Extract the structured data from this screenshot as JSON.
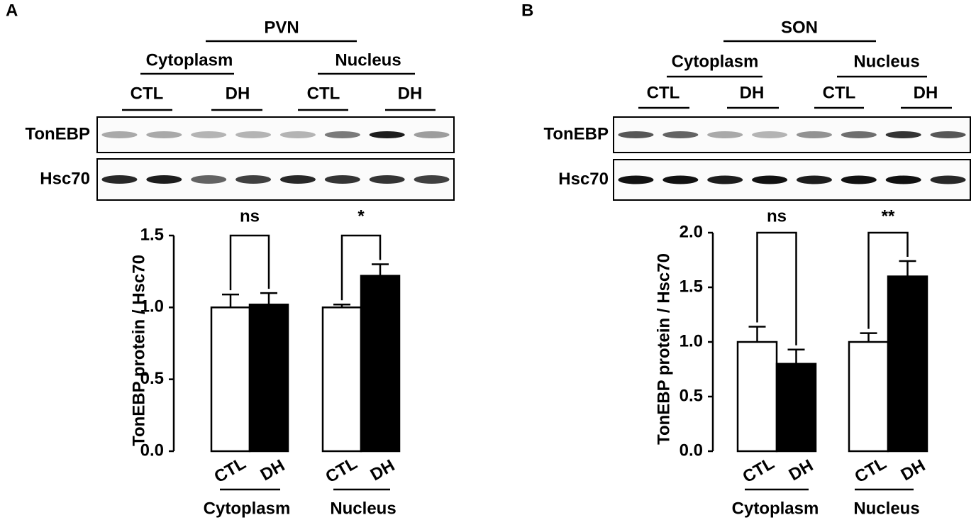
{
  "panels": [
    {
      "label": "A",
      "region": "PVN",
      "fractions": [
        "Cytoplasm",
        "Nucleus"
      ],
      "lanes": [
        "CTL",
        "DH",
        "CTL",
        "DH"
      ],
      "blots": [
        "TonEBP",
        "Hsc70"
      ]
    },
    {
      "label": "B",
      "region": "SON",
      "fractions": [
        "Cytoplasm",
        "Nucleus"
      ],
      "lanes": [
        "CTL",
        "DH",
        "CTL",
        "DH"
      ],
      "blots": [
        "TonEBP",
        "Hsc70"
      ]
    }
  ],
  "chart_data": [
    {
      "type": "bar",
      "ylabel": "TonEBP protein / Hsc70",
      "categories": [
        "CTL",
        "DH",
        "CTL",
        "DH"
      ],
      "groups": [
        "Cytoplasm",
        "Nucleus"
      ],
      "values": [
        1.0,
        1.02,
        1.0,
        1.22
      ],
      "errors": [
        0.09,
        0.08,
        0.02,
        0.08
      ],
      "colors": [
        "#ffffff",
        "#000000",
        "#ffffff",
        "#000000"
      ],
      "annotations": [
        "ns",
        "*"
      ],
      "ylim": [
        0,
        1.5
      ],
      "yticks": [
        {
          "value": 0,
          "label": "0.0"
        },
        {
          "value": 0.5,
          "label": "0.5"
        },
        {
          "value": 1,
          "label": "1.0"
        },
        {
          "value": 1.5,
          "label": "1.5"
        }
      ]
    },
    {
      "type": "bar",
      "ylabel": "TonEBP protein / Hsc70",
      "categories": [
        "CTL",
        "DH",
        "CTL",
        "DH"
      ],
      "groups": [
        "Cytoplasm",
        "Nucleus"
      ],
      "values": [
        1.0,
        0.8,
        1.0,
        1.6
      ],
      "errors": [
        0.14,
        0.13,
        0.08,
        0.14
      ],
      "colors": [
        "#ffffff",
        "#000000",
        "#ffffff",
        "#000000"
      ],
      "annotations": [
        "ns",
        "**"
      ],
      "ylim": [
        0,
        2.0
      ],
      "yticks": [
        {
          "value": 0,
          "label": "0.0"
        },
        {
          "value": 0.5,
          "label": "0.5"
        },
        {
          "value": 1,
          "label": "1.0"
        },
        {
          "value": 1.5,
          "label": "1.5"
        },
        {
          "value": 2,
          "label": "2.0"
        }
      ]
    }
  ]
}
